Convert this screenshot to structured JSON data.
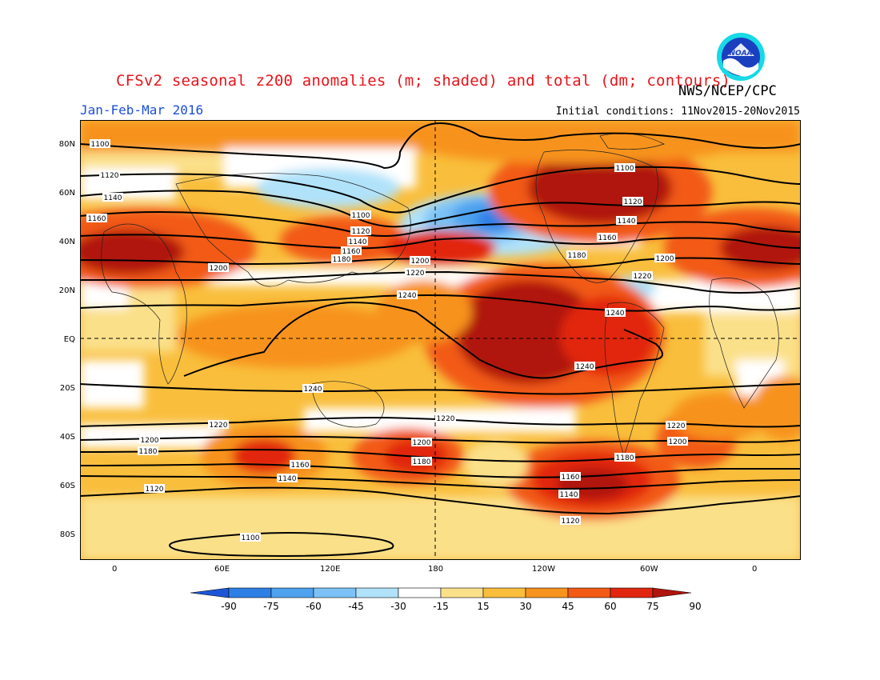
{
  "header": {
    "title": "CFSv2 seasonal z200 anomalies (m; shaded) and total (dm; contours)",
    "agency": "NWS/NCEP/CPC",
    "period": "Jan-Feb-Mar 2016",
    "initial_conditions": "Initial conditions: 11Nov2015-20Nov2015",
    "logo_text": "NOAA"
  },
  "axes": {
    "lat_labels": [
      "80N",
      "60N",
      "40N",
      "20N",
      "EQ",
      "20S",
      "40S",
      "60S",
      "80S"
    ],
    "lon_labels": [
      "0",
      "60E",
      "120E",
      "180",
      "120W",
      "60W",
      "0"
    ]
  },
  "contours": {
    "labels": [
      "1100",
      "1120",
      "1140",
      "1160",
      "1180",
      "1200",
      "1220",
      "1240"
    ]
  },
  "colorbar": {
    "ticks": [
      "-90",
      "-75",
      "-60",
      "-45",
      "-30",
      "-15",
      "15",
      "30",
      "45",
      "60",
      "75",
      "90"
    ],
    "colors": [
      "#1c56d6",
      "#2d7fe6",
      "#4ea2ef",
      "#7cc2f6",
      "#b0e2fa",
      "#ffffff",
      "#fbe08a",
      "#f9be3c",
      "#f7931f",
      "#f25a15",
      "#e1260f",
      "#b0140e"
    ]
  },
  "colors": {
    "title": "#e8141a",
    "period": "#1a4fd6"
  }
}
